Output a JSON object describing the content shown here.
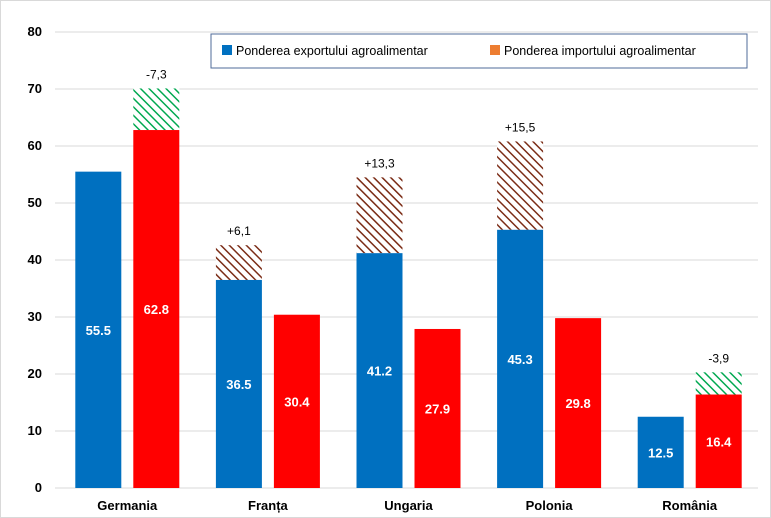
{
  "chart_data": {
    "type": "bar",
    "categories": [
      "Germania",
      "Franța",
      "Ungaria",
      "Polonia",
      "România"
    ],
    "series": [
      {
        "name": "Ponderea exportului agroalimentar",
        "color": "#0070C0",
        "values": [
          55.5,
          36.5,
          41.2,
          45.3,
          12.5
        ]
      },
      {
        "name": "Ponderea importului agroalimentar",
        "color": "#FF0000",
        "values": [
          62.8,
          30.4,
          27.9,
          29.8,
          16.4
        ]
      }
    ],
    "differences": [
      {
        "category": "Germania",
        "label": "-7,3",
        "value": -7.3,
        "hatch_color": "#00A850"
      },
      {
        "category": "Franța",
        "label": "+6,1",
        "value": 6.1,
        "hatch_color": "#7B2C16"
      },
      {
        "category": "Ungaria",
        "label": "+13,3",
        "value": 13.3,
        "hatch_color": "#7B2C16"
      },
      {
        "category": "Polonia",
        "label": "+15,5",
        "value": 15.5,
        "hatch_color": "#7B2C16"
      },
      {
        "category": "România",
        "label": "-3,9",
        "value": -3.9,
        "hatch_color": "#00A850"
      }
    ],
    "value_labels": [
      [
        "55.5",
        "36.5",
        "41.2",
        "45.3",
        "12.5"
      ],
      [
        "62.8",
        "30.4",
        "27.9",
        "29.8",
        "16.4"
      ]
    ],
    "yticks": [
      "0",
      "10",
      "20",
      "30",
      "40",
      "50",
      "60",
      "70",
      "80"
    ],
    "ylim": [
      0,
      80
    ],
    "grid": true,
    "legend": "top-right",
    "legend_swatch_colors": [
      "#0070C0",
      "#ED7D31"
    ]
  }
}
